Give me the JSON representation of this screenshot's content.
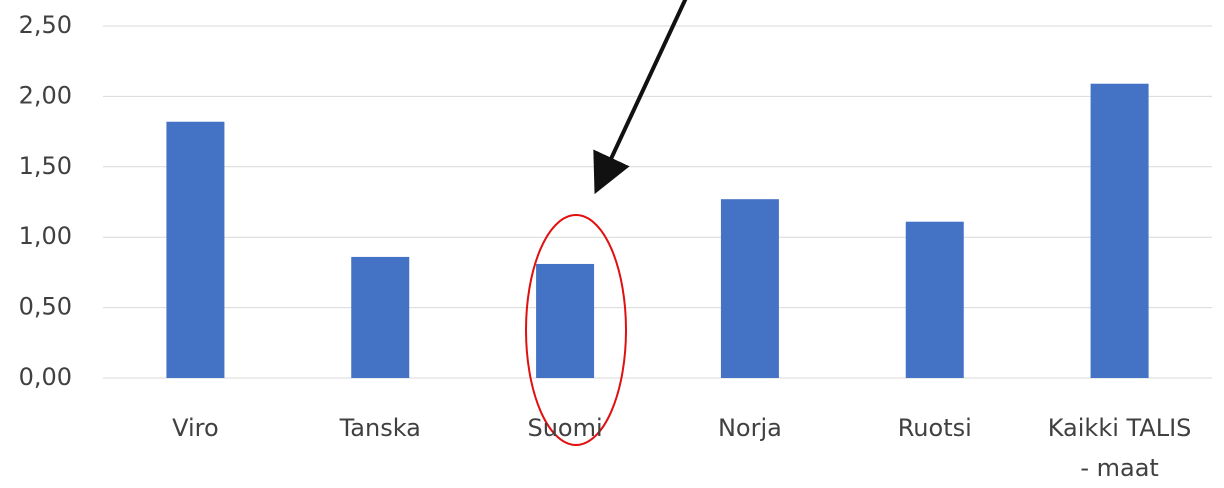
{
  "chart_data": {
    "type": "bar",
    "categories": [
      "Viro",
      "Tanska",
      "Suomi",
      "Norja",
      "Ruotsi",
      "Kaikki TALIS - maat"
    ],
    "values": [
      1.82,
      0.86,
      0.81,
      1.27,
      1.11,
      2.09
    ],
    "color": "#4472c4",
    "ylim": [
      0,
      2.5
    ],
    "yticks": [
      {
        "value": 0,
        "label": "0,00"
      },
      {
        "value": 0.5,
        "label": "0,50"
      },
      {
        "value": 1,
        "label": "1,00"
      },
      {
        "value": 1.5,
        "label": "1,50"
      },
      {
        "value": 2,
        "label": "2,00"
      },
      {
        "value": 2.5,
        "label": "2,50"
      }
    ],
    "grid": true
  }
}
